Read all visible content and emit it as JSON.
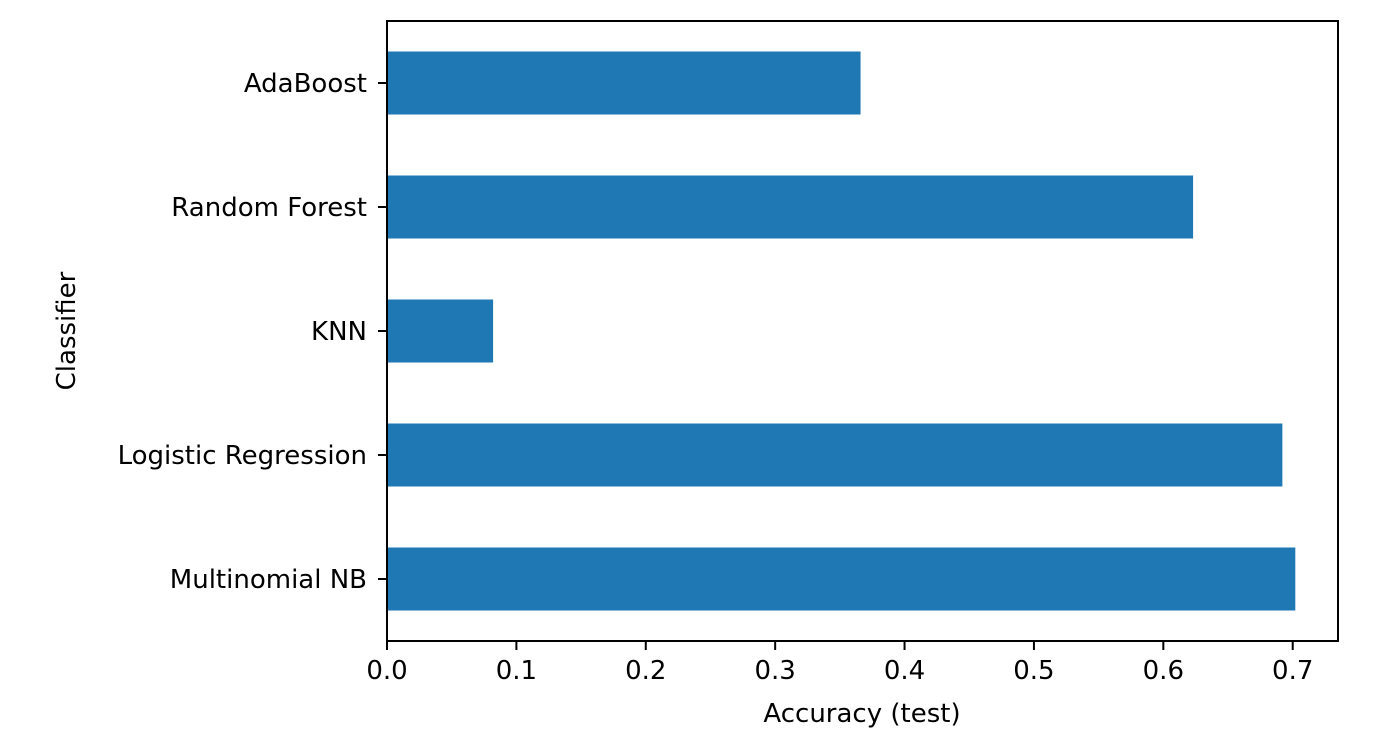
{
  "chart_data": {
    "type": "bar",
    "orientation": "horizontal",
    "categories": [
      "Multinomial NB",
      "Logistic Regression",
      "KNN",
      "Random Forest",
      "AdaBoost"
    ],
    "values": [
      0.702,
      0.692,
      0.082,
      0.623,
      0.366
    ],
    "xlabel": "Accuracy (test)",
    "ylabel": "Classifier",
    "xlim": [
      0,
      0.735
    ],
    "xticks": [
      "0.0",
      "0.1",
      "0.2",
      "0.3",
      "0.4",
      "0.5",
      "0.6",
      "0.7"
    ],
    "grid": false,
    "legend": "none",
    "bar_color": "#1f77b4"
  }
}
